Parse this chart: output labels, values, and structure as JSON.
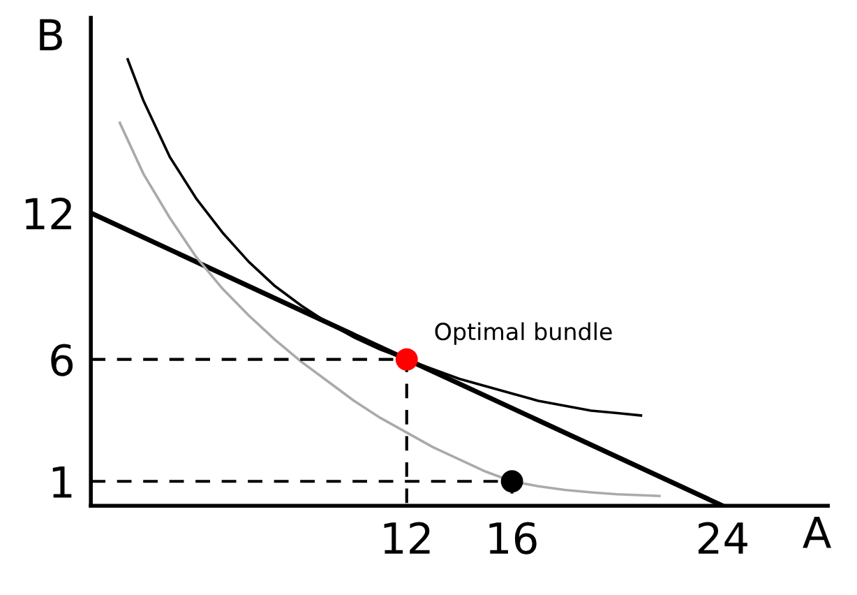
{
  "chart_data": {
    "type": "line",
    "xlabel": "A",
    "ylabel": "B",
    "xlim": [
      0,
      28
    ],
    "ylim": [
      0,
      20
    ],
    "xticks": [
      12,
      16,
      24
    ],
    "yticks": [
      1,
      6,
      12
    ],
    "grid": false,
    "legend": false,
    "series": [
      {
        "type": "line",
        "color": "#000000",
        "x": [
          0,
          24
        ],
        "values": [
          12,
          0
        ]
      },
      {
        "color": "#000000",
        "x": [
          1.4,
          2,
          3,
          4,
          5,
          6,
          7,
          8,
          9,
          10,
          11,
          12,
          13,
          14,
          15,
          16,
          17,
          18,
          19,
          20,
          20.9
        ],
        "values": [
          18.3,
          16.6,
          14.3,
          12.6,
          11.2,
          10,
          9,
          8.2,
          7.5,
          6.9,
          6.4,
          6,
          5.6,
          5.2,
          4.9,
          4.6,
          4.3,
          4.1,
          3.9,
          3.8,
          3.7
        ]
      },
      {
        "type": "line",
        "color": "#aaaaaa",
        "x": [
          1.1,
          2,
          3,
          4,
          5,
          6,
          7,
          8,
          9,
          10,
          11,
          12,
          13,
          14,
          15,
          16,
          17,
          18,
          19,
          20,
          21.6
        ],
        "values": [
          15.7,
          13.6,
          11.8,
          10.2,
          8.9,
          7.8,
          6.8,
          5.9,
          5.1,
          4.3,
          3.6,
          3,
          2.4,
          1.9,
          1.4,
          1,
          0.8,
          0.65,
          0.55,
          0.47,
          0.4
        ]
      },
      {
        "type": "line",
        "color": "#000000",
        "line_style": "dashed",
        "x": [
          0,
          12,
          12
        ],
        "values": [
          6,
          6,
          0
        ]
      },
      {
        "type": "line",
        "color": "#000000",
        "line_style": "dashed",
        "x": [
          0,
          16,
          16
        ],
        "values": [
          1,
          1,
          0
        ]
      },
      {
        "type": "scatter",
        "color": "#ff0000",
        "x": [
          12
        ],
        "values": [
          6
        ]
      },
      {
        "type": "scatter",
        "color": "#000000",
        "x": [
          16
        ],
        "values": [
          1
        ]
      }
    ],
    "annotations": [
      {
        "text": "Optimal bundle",
        "x": 12,
        "y": 6
      }
    ]
  }
}
